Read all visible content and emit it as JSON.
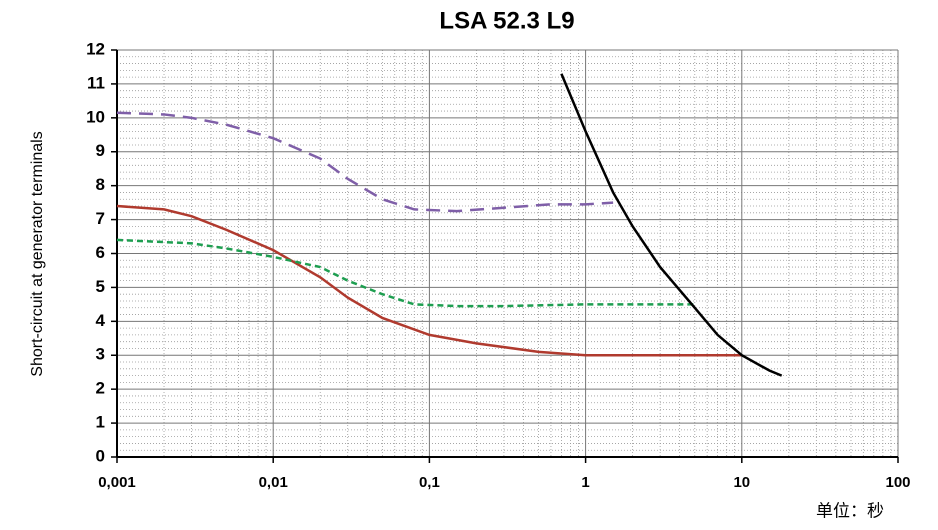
{
  "chart_data": {
    "type": "line",
    "title": "LSA 52.3 L9",
    "ylabel": "Short-circuit at generator terminals",
    "annotation": "单位：秒",
    "xscale": "log",
    "grid": true,
    "minor_grid": true,
    "xlim": [
      0.001,
      100
    ],
    "ylim": [
      0,
      12
    ],
    "xticks": [
      {
        "value": 0.001,
        "label": "0,001"
      },
      {
        "value": 0.01,
        "label": "0,01"
      },
      {
        "value": 0.1,
        "label": "0,1"
      },
      1,
      10,
      100
    ],
    "yticks": [
      0,
      1,
      2,
      3,
      4,
      5,
      6,
      7,
      8,
      9,
      10,
      11,
      12
    ],
    "series": [
      {
        "color": "#7f5fa8",
        "dash": "14 8",
        "x": [
          0.001,
          0.002,
          0.003,
          0.005,
          0.01,
          0.02,
          0.03,
          0.05,
          0.08,
          0.15,
          0.3,
          0.6,
          1,
          1.5
        ],
        "values": [
          10.15,
          10.1,
          10.0,
          9.8,
          9.4,
          8.8,
          8.2,
          7.6,
          7.3,
          7.25,
          7.35,
          7.45,
          7.45,
          7.5
        ]
      },
      {
        "color": "#b03a2e",
        "dash": null,
        "x": [
          0.001,
          0.002,
          0.003,
          0.005,
          0.01,
          0.02,
          0.03,
          0.05,
          0.1,
          0.2,
          0.5,
          1,
          3,
          10
        ],
        "values": [
          7.4,
          7.3,
          7.1,
          6.7,
          6.1,
          5.3,
          4.7,
          4.1,
          3.6,
          3.35,
          3.1,
          3.0,
          3.0,
          3.0
        ]
      },
      {
        "color": "#1e9e50",
        "dash": "6 4",
        "x": [
          0.001,
          0.003,
          0.005,
          0.01,
          0.02,
          0.03,
          0.05,
          0.08,
          0.15,
          0.3,
          1,
          3,
          5
        ],
        "values": [
          6.4,
          6.3,
          6.15,
          5.9,
          5.6,
          5.2,
          4.8,
          4.5,
          4.45,
          4.45,
          4.5,
          4.5,
          4.5
        ]
      },
      {
        "color": "#000000",
        "dash": null,
        "x": [
          0.7,
          1,
          1.5,
          2,
          3,
          5,
          7,
          10,
          15,
          18
        ],
        "values": [
          11.3,
          9.6,
          7.8,
          6.8,
          5.6,
          4.4,
          3.6,
          3.0,
          2.55,
          2.4
        ]
      }
    ]
  }
}
